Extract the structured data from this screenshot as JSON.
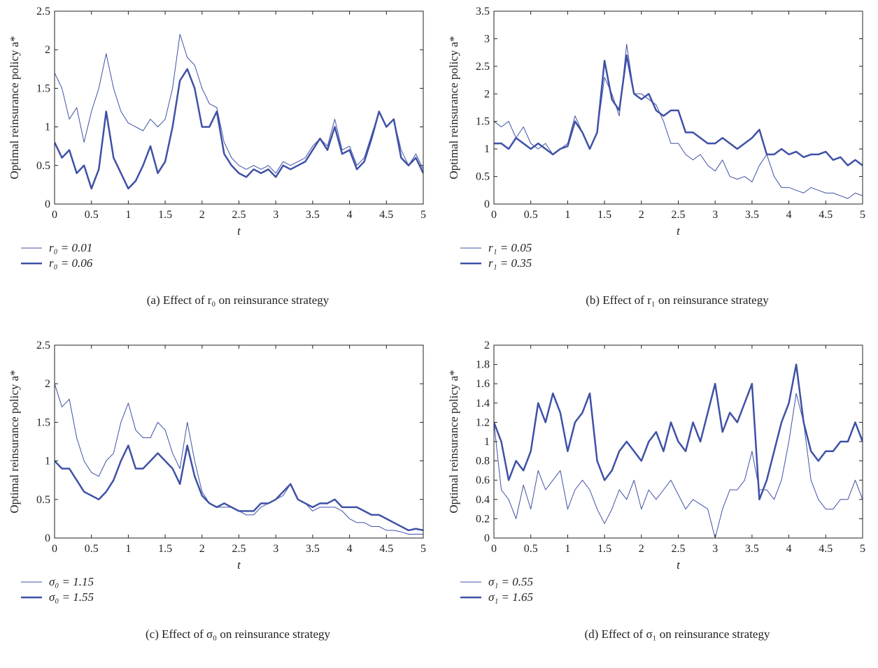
{
  "chart_data": [
    {
      "type": "line",
      "ylabel": "Optimal reinsurance policy a*",
      "xlabel": "t",
      "caption": "(a)  Effect of r₀ on reinsurance strategy",
      "x": [
        0,
        0.1,
        0.2,
        0.3,
        0.4,
        0.5,
        0.6,
        0.7,
        0.8,
        0.9,
        1,
        1.1,
        1.2,
        1.3,
        1.4,
        1.5,
        1.6,
        1.7,
        1.8,
        1.9,
        2,
        2.1,
        2.2,
        2.3,
        2.4,
        2.5,
        2.6,
        2.7,
        2.8,
        2.9,
        3,
        3.1,
        3.2,
        3.3,
        3.4,
        3.5,
        3.6,
        3.7,
        3.8,
        3.9,
        4,
        4.1,
        4.2,
        4.3,
        4.4,
        4.5,
        4.6,
        4.7,
        4.8,
        4.9,
        5
      ],
      "xlim": [
        0,
        5
      ],
      "xticks": [
        0,
        0.5,
        1,
        1.5,
        2,
        2.5,
        3,
        3.5,
        4,
        4.5,
        5
      ],
      "ylim": [
        0,
        2.5
      ],
      "yticks": [
        0,
        0.5,
        1,
        1.5,
        2,
        2.5
      ],
      "series": [
        {
          "name": "r₀ = 0.01",
          "color": "#3f51a6",
          "linewidth": 1,
          "values": [
            1.7,
            1.5,
            1.1,
            1.25,
            0.8,
            1.2,
            1.5,
            1.95,
            1.5,
            1.2,
            1.05,
            1.0,
            0.95,
            1.1,
            1.0,
            1.1,
            1.5,
            2.2,
            1.9,
            1.8,
            1.5,
            1.3,
            1.25,
            0.8,
            0.6,
            0.5,
            0.45,
            0.5,
            0.45,
            0.5,
            0.4,
            0.55,
            0.5,
            0.55,
            0.6,
            0.75,
            0.85,
            0.75,
            1.1,
            0.7,
            0.75,
            0.5,
            0.6,
            0.9,
            1.2,
            1.0,
            1.1,
            0.7,
            0.5,
            0.65,
            0.45
          ]
        },
        {
          "name": "r₀ = 0.06",
          "color": "#3f51a6",
          "linewidth": 2.5,
          "values": [
            0.8,
            0.6,
            0.7,
            0.4,
            0.5,
            0.2,
            0.45,
            1.2,
            0.6,
            0.4,
            0.2,
            0.3,
            0.5,
            0.75,
            0.4,
            0.55,
            1.0,
            1.6,
            1.75,
            1.5,
            1.0,
            1.0,
            1.2,
            0.65,
            0.5,
            0.4,
            0.35,
            0.45,
            0.4,
            0.45,
            0.35,
            0.5,
            0.45,
            0.5,
            0.55,
            0.7,
            0.85,
            0.7,
            1.0,
            0.65,
            0.7,
            0.45,
            0.55,
            0.85,
            1.2,
            1.0,
            1.1,
            0.6,
            0.5,
            0.6,
            0.4
          ]
        }
      ]
    },
    {
      "type": "line",
      "ylabel": "Optimal reinsurance policy a*",
      "xlabel": "t",
      "caption": "(b)  Effect of r₁ on reinsurance strategy",
      "x": [
        0,
        0.1,
        0.2,
        0.3,
        0.4,
        0.5,
        0.6,
        0.7,
        0.8,
        0.9,
        1,
        1.1,
        1.2,
        1.3,
        1.4,
        1.5,
        1.6,
        1.7,
        1.8,
        1.9,
        2,
        2.1,
        2.2,
        2.3,
        2.4,
        2.5,
        2.6,
        2.7,
        2.8,
        2.9,
        3,
        3.1,
        3.2,
        3.3,
        3.4,
        3.5,
        3.6,
        3.7,
        3.8,
        3.9,
        4,
        4.1,
        4.2,
        4.3,
        4.4,
        4.5,
        4.6,
        4.7,
        4.8,
        4.9,
        5
      ],
      "xlim": [
        0,
        5
      ],
      "xticks": [
        0,
        0.5,
        1,
        1.5,
        2,
        2.5,
        3,
        3.5,
        4,
        4.5,
        5
      ],
      "ylim": [
        0,
        3.5
      ],
      "yticks": [
        0,
        0.5,
        1,
        1.5,
        2,
        2.5,
        3,
        3.5
      ],
      "series": [
        {
          "name": "r₁ = 0.05",
          "color": "#3f51a6",
          "linewidth": 1,
          "values": [
            1.5,
            1.4,
            1.5,
            1.2,
            1.4,
            1.1,
            1.0,
            1.1,
            0.9,
            1.0,
            1.1,
            1.6,
            1.3,
            1.0,
            1.3,
            2.3,
            2.0,
            1.6,
            2.9,
            2.0,
            2.0,
            1.9,
            1.8,
            1.5,
            1.1,
            1.1,
            0.9,
            0.8,
            0.9,
            0.7,
            0.6,
            0.8,
            0.5,
            0.45,
            0.5,
            0.4,
            0.7,
            0.9,
            0.5,
            0.3,
            0.3,
            0.25,
            0.2,
            0.3,
            0.25,
            0.2,
            0.2,
            0.15,
            0.1,
            0.2,
            0.15
          ]
        },
        {
          "name": "r₁ = 0.35",
          "color": "#3f51a6",
          "linewidth": 2.5,
          "values": [
            1.1,
            1.1,
            1.0,
            1.2,
            1.1,
            1.0,
            1.1,
            1.0,
            0.9,
            1.0,
            1.05,
            1.5,
            1.3,
            1.0,
            1.3,
            2.6,
            1.9,
            1.7,
            2.7,
            2.0,
            1.9,
            2.0,
            1.7,
            1.6,
            1.7,
            1.7,
            1.3,
            1.3,
            1.2,
            1.1,
            1.1,
            1.2,
            1.1,
            1.0,
            1.1,
            1.2,
            1.35,
            0.9,
            0.9,
            1.0,
            0.9,
            0.95,
            0.85,
            0.9,
            0.9,
            0.95,
            0.8,
            0.85,
            0.7,
            0.8,
            0.7
          ]
        }
      ]
    },
    {
      "type": "line",
      "ylabel": "Optimal reinsurance policy a*",
      "xlabel": "t",
      "caption": "(c)  Effect of σ₀ on reinsurance strategy",
      "x": [
        0,
        0.1,
        0.2,
        0.3,
        0.4,
        0.5,
        0.6,
        0.7,
        0.8,
        0.9,
        1,
        1.1,
        1.2,
        1.3,
        1.4,
        1.5,
        1.6,
        1.7,
        1.8,
        1.9,
        2,
        2.1,
        2.2,
        2.3,
        2.4,
        2.5,
        2.6,
        2.7,
        2.8,
        2.9,
        3,
        3.1,
        3.2,
        3.3,
        3.4,
        3.5,
        3.6,
        3.7,
        3.8,
        3.9,
        4,
        4.1,
        4.2,
        4.3,
        4.4,
        4.5,
        4.6,
        4.7,
        4.8,
        4.9,
        5
      ],
      "xlim": [
        0,
        5
      ],
      "xticks": [
        0,
        0.5,
        1,
        1.5,
        2,
        2.5,
        3,
        3.5,
        4,
        4.5,
        5
      ],
      "ylim": [
        0,
        2.5
      ],
      "yticks": [
        0,
        0.5,
        1,
        1.5,
        2,
        2.5
      ],
      "series": [
        {
          "name": "σ₀ = 1.15",
          "color": "#3f51a6",
          "linewidth": 1,
          "values": [
            2.0,
            1.7,
            1.8,
            1.3,
            1.0,
            0.85,
            0.8,
            1.0,
            1.1,
            1.5,
            1.75,
            1.4,
            1.3,
            1.3,
            1.5,
            1.4,
            1.1,
            0.9,
            1.5,
            1.0,
            0.6,
            0.45,
            0.4,
            0.4,
            0.4,
            0.35,
            0.3,
            0.3,
            0.4,
            0.45,
            0.5,
            0.55,
            0.7,
            0.5,
            0.45,
            0.35,
            0.4,
            0.4,
            0.4,
            0.35,
            0.25,
            0.2,
            0.2,
            0.15,
            0.15,
            0.1,
            0.1,
            0.08,
            0.05,
            0.05,
            0.05
          ]
        },
        {
          "name": "σ₀ = 1.55",
          "color": "#3f51a6",
          "linewidth": 2.5,
          "values": [
            1.0,
            0.9,
            0.9,
            0.75,
            0.6,
            0.55,
            0.5,
            0.6,
            0.75,
            1.0,
            1.2,
            0.9,
            0.9,
            1.0,
            1.1,
            1.0,
            0.9,
            0.7,
            1.2,
            0.8,
            0.55,
            0.45,
            0.4,
            0.45,
            0.4,
            0.35,
            0.35,
            0.35,
            0.45,
            0.45,
            0.5,
            0.6,
            0.7,
            0.5,
            0.45,
            0.4,
            0.45,
            0.45,
            0.5,
            0.4,
            0.4,
            0.4,
            0.35,
            0.3,
            0.3,
            0.25,
            0.2,
            0.15,
            0.1,
            0.12,
            0.1
          ]
        }
      ]
    },
    {
      "type": "line",
      "ylabel": "Optimal reinsurance policy a*",
      "xlabel": "t",
      "caption": "(d)  Effect of σ₁ on reinsurance strategy",
      "x": [
        0,
        0.1,
        0.2,
        0.3,
        0.4,
        0.5,
        0.6,
        0.7,
        0.8,
        0.9,
        1,
        1.1,
        1.2,
        1.3,
        1.4,
        1.5,
        1.6,
        1.7,
        1.8,
        1.9,
        2,
        2.1,
        2.2,
        2.3,
        2.4,
        2.5,
        2.6,
        2.7,
        2.8,
        2.9,
        3,
        3.1,
        3.2,
        3.3,
        3.4,
        3.5,
        3.6,
        3.7,
        3.8,
        3.9,
        4,
        4.1,
        4.2,
        4.3,
        4.4,
        4.5,
        4.6,
        4.7,
        4.8,
        4.9,
        5
      ],
      "xlim": [
        0,
        5
      ],
      "xticks": [
        0,
        0.5,
        1,
        1.5,
        2,
        2.5,
        3,
        3.5,
        4,
        4.5,
        5
      ],
      "ylim": [
        0,
        2
      ],
      "yticks": [
        0,
        0.2,
        0.4,
        0.6,
        0.8,
        1,
        1.2,
        1.4,
        1.6,
        1.8,
        2
      ],
      "series": [
        {
          "name": "σ₁ = 0.55",
          "color": "#3f51a6",
          "linewidth": 1,
          "values": [
            1.2,
            0.5,
            0.4,
            0.2,
            0.55,
            0.3,
            0.7,
            0.5,
            0.6,
            0.7,
            0.3,
            0.5,
            0.6,
            0.5,
            0.3,
            0.15,
            0.3,
            0.5,
            0.4,
            0.6,
            0.3,
            0.5,
            0.4,
            0.5,
            0.6,
            0.45,
            0.3,
            0.4,
            0.35,
            0.3,
            0.0,
            0.3,
            0.5,
            0.5,
            0.6,
            0.9,
            0.5,
            0.5,
            0.4,
            0.6,
            1.0,
            1.5,
            1.2,
            0.6,
            0.4,
            0.3,
            0.3,
            0.4,
            0.4,
            0.6,
            0.4
          ]
        },
        {
          "name": "σ₁ = 1.65",
          "color": "#3f51a6",
          "linewidth": 2.5,
          "values": [
            1.2,
            1.0,
            0.6,
            0.8,
            0.7,
            0.9,
            1.4,
            1.2,
            1.5,
            1.3,
            0.9,
            1.2,
            1.3,
            1.5,
            0.8,
            0.6,
            0.7,
            0.9,
            1.0,
            0.9,
            0.8,
            1.0,
            1.1,
            0.9,
            1.2,
            1.0,
            0.9,
            1.2,
            1.0,
            1.3,
            1.6,
            1.1,
            1.3,
            1.2,
            1.4,
            1.6,
            0.4,
            0.6,
            0.9,
            1.2,
            1.4,
            1.8,
            1.2,
            0.9,
            0.8,
            0.9,
            0.9,
            1.0,
            1.0,
            1.2,
            1.0
          ]
        }
      ]
    }
  ]
}
